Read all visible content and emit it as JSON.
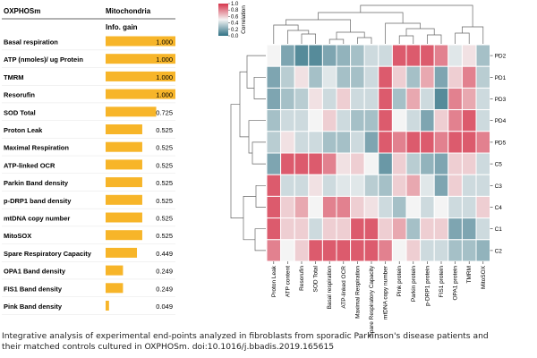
{
  "colors": {
    "bar": "#f7b529",
    "high": "#d6354b",
    "mid": "#f4f4f4",
    "low": "#2f7184",
    "text": "#111111"
  },
  "caption": {
    "line1": "Integrative analysis of experimental end-points analyzed in fibroblasts from sporadic Parkinson's disease patients and",
    "line2": "their matched controls cultured in OXPHOSm. doi:10.1016/j.bbadis.2019.165615"
  },
  "chart_data": [
    {
      "type": "bar",
      "orientation": "horizontal",
      "header_left": "OXPHOSm",
      "header_right": "Mitochondria",
      "column_label": "Info. gain",
      "categories": [
        "Basal respiration",
        "ATP (nmoles)/ ug Protein",
        "TMRM",
        "Resorufin",
        "SOD Total",
        "Proton Leak",
        "Maximal Respiration",
        "ATP-linked OCR",
        "Parkin Band density",
        "p-DRP1 band density",
        "mtDNA copy number",
        "MitoSOX",
        "Spare Respiratory Capacity",
        "OPA1 Band density",
        "FIS1 Band density",
        "Pink Band density"
      ],
      "values": [
        1.0,
        1.0,
        1.0,
        1.0,
        0.725,
        0.525,
        0.525,
        0.525,
        0.525,
        0.525,
        0.525,
        0.525,
        0.449,
        0.249,
        0.249,
        0.049
      ],
      "value_labels": [
        "1.000",
        "1.000",
        "1.000",
        "1.000",
        "0.725",
        "0.525",
        "0.525",
        "0.525",
        "0.525",
        "0.525",
        "0.525",
        "0.525",
        "0.449",
        "0.249",
        "0.249",
        "0.049"
      ],
      "xlim": [
        0,
        1
      ]
    },
    {
      "type": "heatmap",
      "colorbar_title": "Correlation",
      "colorbar_ticks": [
        "1.0",
        "0.8",
        "0.6",
        "0.4",
        "0.2",
        "0.0"
      ],
      "zlim": [
        0,
        1
      ],
      "columns": [
        "Proton Leak",
        "ATP content",
        "Resorufin",
        "SOD Total",
        "Basal respiration",
        "ATP-linked OCR",
        "Maximal Respiration",
        "Spare Respiratory Capacity",
        "mtDNA copy number",
        "Pink protein",
        "Parkin protein",
        "p-DRP1 protein",
        "FIS1 protein",
        "OPA1 protein",
        "TMRM",
        "MitoSOX"
      ],
      "rows": [
        "PD2",
        "PD1",
        "PD3",
        "PD4",
        "PD5",
        "C5",
        "C3",
        "C4",
        "C1",
        "C2"
      ],
      "values": [
        [
          0.5,
          0.2,
          0.1,
          0.1,
          0.2,
          0.25,
          0.3,
          0.4,
          0.4,
          0.9,
          0.9,
          0.9,
          0.8,
          0.45,
          0.55,
          0.3
        ],
        [
          0.2,
          0.35,
          0.55,
          0.3,
          0.45,
          0.3,
          0.3,
          0.4,
          0.9,
          0.6,
          0.3,
          0.7,
          0.2,
          0.6,
          0.8,
          0.35
        ],
        [
          0.2,
          0.3,
          0.35,
          0.55,
          0.4,
          0.6,
          0.4,
          0.4,
          0.9,
          0.3,
          0.7,
          0.4,
          0.1,
          0.8,
          0.7,
          0.4
        ],
        [
          0.3,
          0.4,
          0.4,
          0.5,
          0.6,
          0.4,
          0.3,
          0.3,
          0.9,
          0.5,
          0.4,
          0.2,
          0.6,
          0.8,
          0.9,
          0.4
        ],
        [
          0.35,
          0.55,
          0.4,
          0.4,
          0.3,
          0.3,
          0.4,
          0.2,
          0.9,
          0.8,
          0.9,
          0.9,
          0.8,
          0.9,
          0.9,
          0.8
        ],
        [
          0.2,
          0.9,
          0.9,
          0.9,
          0.8,
          0.55,
          0.6,
          0.5,
          0.15,
          0.6,
          0.35,
          0.25,
          0.2,
          0.6,
          0.6,
          0.4
        ],
        [
          0.9,
          0.4,
          0.4,
          0.55,
          0.4,
          0.45,
          0.45,
          0.35,
          0.3,
          0.6,
          0.7,
          0.45,
          0.2,
          0.6,
          0.4,
          0.4
        ],
        [
          0.9,
          0.6,
          0.7,
          0.5,
          0.8,
          0.8,
          0.6,
          0.55,
          0.4,
          0.3,
          0.5,
          0.4,
          0.5,
          0.4,
          0.4,
          0.6
        ],
        [
          0.9,
          0.6,
          0.6,
          0.4,
          0.6,
          0.6,
          0.9,
          0.9,
          0.6,
          0.7,
          0.3,
          0.6,
          0.6,
          0.2,
          0.2,
          0.4
        ],
        [
          0.8,
          0.5,
          0.6,
          0.9,
          0.9,
          0.9,
          0.9,
          0.9,
          0.8,
          0.5,
          0.6,
          0.4,
          0.4,
          0.3,
          0.3,
          0.25
        ]
      ]
    }
  ]
}
